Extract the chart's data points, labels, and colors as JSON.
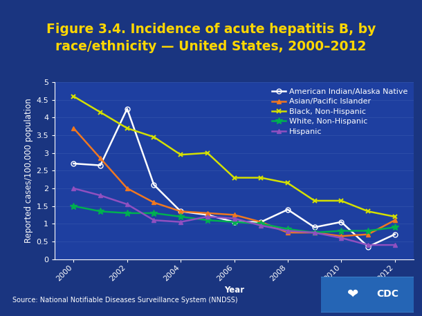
{
  "title": "Figure 3.4. Incidence of acute hepatitis B, by\nrace/ethnicity — United States, 2000–2012",
  "xlabel": "Year",
  "ylabel": "Reported cases/100,000 population",
  "years": [
    2000,
    2001,
    2002,
    2003,
    2004,
    2005,
    2006,
    2007,
    2008,
    2009,
    2010,
    2011,
    2012
  ],
  "series": {
    "American Indian/Alaska Native": {
      "color": "#ffffff",
      "marker": "o",
      "markerfacecolor": "none",
      "markeredgecolor": "#ffffff",
      "values": [
        2.7,
        2.65,
        4.25,
        2.1,
        1.35,
        1.25,
        1.05,
        1.05,
        1.4,
        0.9,
        1.05,
        0.35,
        0.7
      ]
    },
    "Asian/Pacific Islander": {
      "color": "#f07820",
      "marker": "^",
      "markerfacecolor": "#f07820",
      "markeredgecolor": "#f07820",
      "values": [
        3.7,
        2.85,
        2.0,
        1.6,
        1.35,
        1.3,
        1.25,
        1.05,
        0.75,
        0.75,
        0.65,
        0.7,
        1.1
      ]
    },
    "Black, Non-Hispanic": {
      "color": "#d4e000",
      "marker": "x",
      "markerfacecolor": "#d4e000",
      "markeredgecolor": "#d4e000",
      "values": [
        4.6,
        4.15,
        3.7,
        3.45,
        2.95,
        3.0,
        2.3,
        2.3,
        2.15,
        1.65,
        1.65,
        1.35,
        1.2
      ]
    },
    "White, Non-Hispanic": {
      "color": "#00b050",
      "marker": "*",
      "markerfacecolor": "#00b050",
      "markeredgecolor": "#00b050",
      "values": [
        1.5,
        1.35,
        1.3,
        1.3,
        1.2,
        1.1,
        1.05,
        1.0,
        0.85,
        0.75,
        0.8,
        0.8,
        0.9
      ]
    },
    "Hispanic": {
      "color": "#9050c0",
      "marker": "^",
      "markerfacecolor": "#9050c0",
      "markeredgecolor": "#9050c0",
      "values": [
        2.0,
        1.8,
        1.55,
        1.1,
        1.05,
        1.2,
        1.15,
        0.95,
        0.8,
        0.75,
        0.6,
        0.4,
        0.4
      ]
    }
  },
  "ylim": [
    0,
    5
  ],
  "yticks": [
    0,
    0.5,
    1.0,
    1.5,
    2.0,
    2.5,
    3.0,
    3.5,
    4.0,
    4.5,
    5.0
  ],
  "xticks": [
    2000,
    2002,
    2004,
    2006,
    2008,
    2010,
    2012
  ],
  "outer_bg": "#1a3580",
  "inner_bg": "#1e3fa0",
  "plot_bg": "#1e3fa0",
  "title_color": "#ffd700",
  "label_color": "#ffffff",
  "tick_color": "#ffffff",
  "source_text": "Source: National Notifiable Diseases Surveillance System (NNDSS)",
  "grid_color": "#3a5ab0",
  "title_fontsize": 13.5,
  "label_fontsize": 8.5,
  "legend_fontsize": 8,
  "tick_fontsize": 8,
  "source_fontsize": 7
}
